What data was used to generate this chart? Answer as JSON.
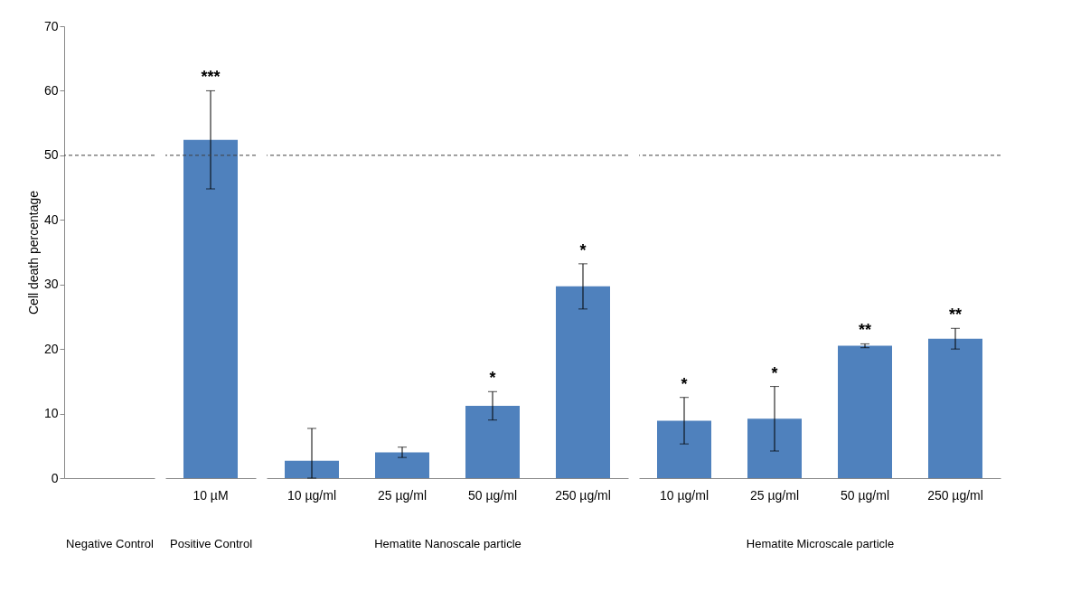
{
  "chart_data": [
    {
      "type": "bar",
      "ylabel": "Cell death percentage",
      "xlabel": "Negative Control",
      "categories": [
        null
      ],
      "ylim": [
        0,
        70
      ],
      "yticks": [
        0,
        10,
        20,
        30,
        40,
        50,
        60,
        70
      ],
      "color": "#4f81bd",
      "values": [
        0
      ],
      "errors": [
        null
      ],
      "ref_lines": [
        {
          "axis": "y",
          "value": 50,
          "color": "#404040",
          "line_style": "dashed"
        }
      ]
    },
    {
      "type": "bar",
      "xlabel": "Positive Control",
      "categories": [
        "10 µM"
      ],
      "ylim": [
        0,
        70
      ],
      "tick_labels": "x",
      "color": "#4f81bd",
      "values": [
        52.4
      ],
      "errors": [
        7.6
      ],
      "ref_lines": [
        {
          "axis": "y",
          "value": 50,
          "color": "#404040",
          "line_style": "dashed"
        }
      ],
      "annotations": [
        {
          "text": "***",
          "x": "10 µM",
          "y": 60
        }
      ]
    },
    {
      "type": "bar",
      "xlabel": "Hematite Nanoscale particle",
      "categories": [
        "10 µg/ml",
        "25 µg/ml",
        "50  µg/ml",
        "250  µg/ml"
      ],
      "ylim": [
        0,
        70
      ],
      "tick_labels": "x",
      "color": "#4f81bd",
      "values": [
        2.7,
        4.0,
        11.2,
        29.7
      ],
      "errors": [
        [
          0,
          7.7
        ],
        0.8,
        2.2,
        3.5
      ],
      "ref_lines": [
        {
          "axis": "y",
          "value": 50,
          "color": "#404040",
          "line_style": "dashed"
        }
      ],
      "annotations": [
        {
          "text": "*",
          "x": "50  µg/ml",
          "y": 13.4
        },
        {
          "text": "*",
          "x": "250  µg/ml",
          "y": 33.2
        }
      ]
    },
    {
      "type": "bar",
      "xlabel": "Hematite Microscale particle",
      "categories": [
        "10 µg/ml",
        "25 µg/ml",
        "50  µg/ml",
        "250  µg/ml"
      ],
      "ylim": [
        0,
        70
      ],
      "tick_labels": "x",
      "color": "#4f81bd",
      "values": [
        8.9,
        9.2,
        20.5,
        21.6
      ],
      "errors": [
        3.6,
        5,
        0.3,
        1.6
      ],
      "ref_lines": [
        {
          "axis": "y",
          "value": 50,
          "color": "#404040",
          "line_style": "dashed"
        }
      ],
      "annotations": [
        {
          "text": "*",
          "x": "10 µg/ml",
          "y": 12.5
        },
        {
          "text": "*",
          "x": "25 µg/ml",
          "y": 14.2
        },
        {
          "text": "**",
          "x": "50  µg/ml",
          "y": 20.8
        },
        {
          "text": "**",
          "x": "250  µg/ml",
          "y": 23.2
        }
      ]
    }
  ]
}
